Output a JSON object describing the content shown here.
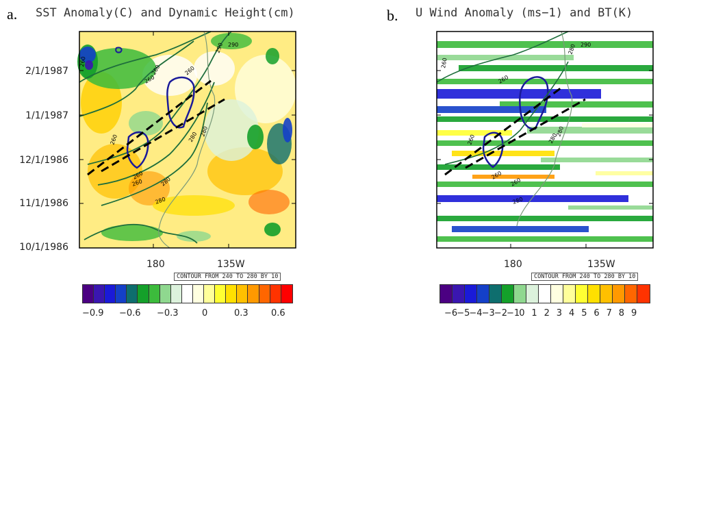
{
  "panel_a": {
    "letter": "a.",
    "title": "SST Anomaly(C) and Dynamic Height(cm)",
    "y_ticks": [
      "2/1/1987",
      "1/1/1987",
      "12/1/1986",
      "11/1/1986",
      "10/1/1986"
    ],
    "x_ticks": [
      "180",
      "135W"
    ],
    "contour_note": "CONTOUR FROM 240 TO 280 BY 10",
    "contour_labels": [
      "260",
      "260",
      "260",
      "260",
      "260",
      "260",
      "260",
      "280",
      "280",
      "280",
      "280",
      "290",
      "290"
    ],
    "colorbar_labels": [
      "−0.9",
      "−0.6",
      "−0.3",
      "0",
      "0.3",
      "0.6"
    ],
    "colorbar_colors": [
      "#4b0082",
      "#3a16b0",
      "#1a1ad8",
      "#1440c8",
      "#0e6e6e",
      "#14a02a",
      "#3cbb3c",
      "#8fd88f",
      "#dcf2dc",
      "#ffffff",
      "#ffffe0",
      "#ffff9a",
      "#ffff33",
      "#ffe000",
      "#ffc000",
      "#ff9900",
      "#ff6600",
      "#ff3300",
      "#ff0000"
    ]
  },
  "panel_b": {
    "letter": "b.",
    "title": "U Wind Anomaly (ms−1) and BT(K)",
    "x_ticks": [
      "180",
      "135W"
    ],
    "contour_note": "CONTOUR FROM 240 TO 280 BY 10",
    "contour_labels": [
      "260",
      "260",
      "260",
      "260",
      "260",
      "280",
      "280",
      "280",
      "280",
      "290"
    ],
    "colorbar_labels": [
      "−6",
      "−5",
      "−4",
      "−3",
      "−2",
      "−1",
      "0",
      "1",
      "2",
      "3",
      "4",
      "5",
      "6",
      "7",
      "8",
      "9"
    ],
    "colorbar_colors": [
      "#4b0082",
      "#3a16b0",
      "#1a1ad8",
      "#1440c8",
      "#0e6e6e",
      "#14a02a",
      "#8fd88f",
      "#dcf2dc",
      "#ffffff",
      "#ffffe0",
      "#ffff9a",
      "#ffff33",
      "#ffe000",
      "#ffc000",
      "#ff9900",
      "#ff6600",
      "#ff3300"
    ]
  }
}
